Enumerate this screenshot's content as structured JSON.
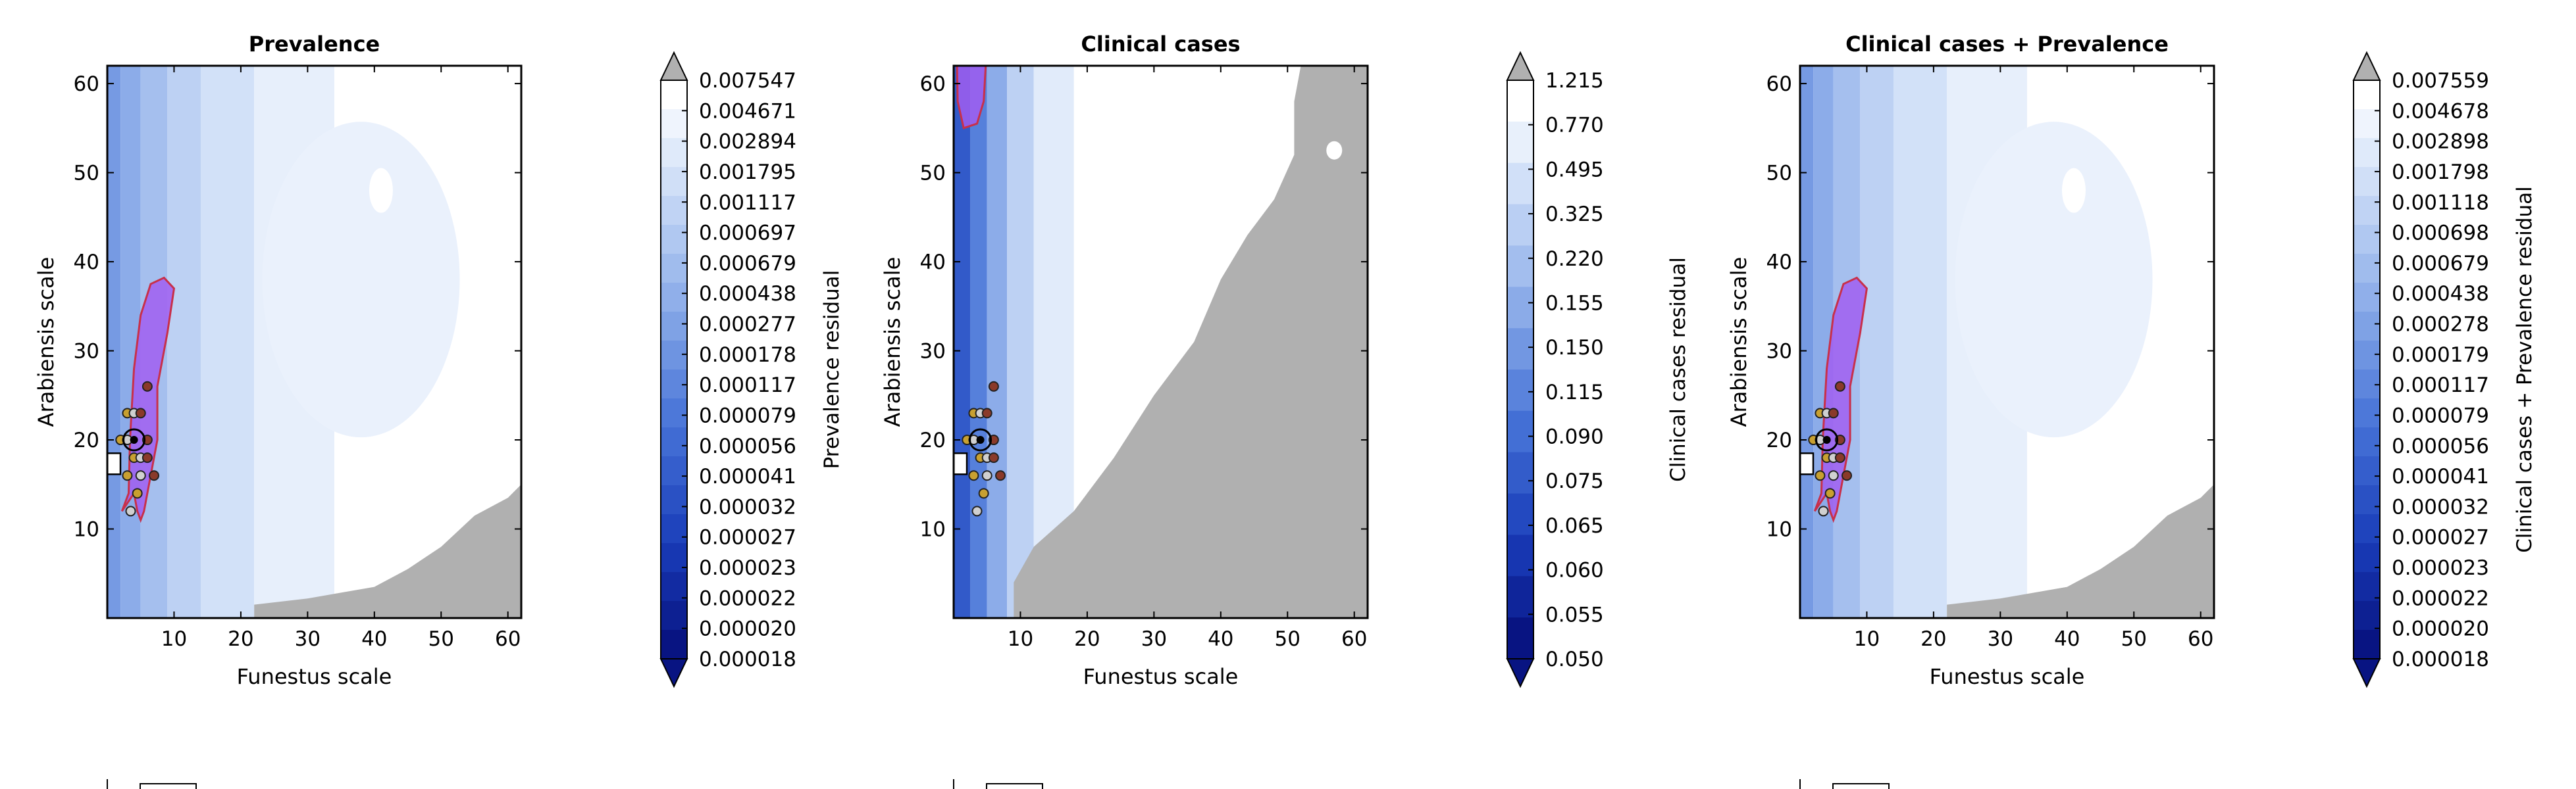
{
  "figure": {
    "background": "#ffffff",
    "nodata_color": "#b0b0b0",
    "region_fill": "#a05ef0",
    "region_stroke": "#c8304a"
  },
  "chart_data": [
    {
      "type": "heatmap",
      "id": "prevalence",
      "title": "Prevalence",
      "xlabel": "Funestus scale",
      "ylabel": "Arabiensis scale",
      "xlim": [
        0,
        62
      ],
      "ylim": [
        0,
        62
      ],
      "xticks": [
        10,
        20,
        30,
        40,
        50,
        60
      ],
      "yticks": [
        10,
        20,
        30,
        40,
        50,
        60
      ],
      "colorbar_label": "Prevalence residual",
      "colorbar_ticks": [
        "0.007547",
        "0.004671",
        "0.002894",
        "0.001795",
        "0.001117",
        "0.000697",
        "0.000679",
        "0.000438",
        "0.000277",
        "0.000178",
        "0.000117",
        "0.000079",
        "0.000056",
        "0.000041",
        "0.000032",
        "0.000027",
        "0.000023",
        "0.000022",
        "0.000020",
        "0.000018"
      ],
      "colorbar_extend": "both",
      "nodata_region": "bottom-right",
      "highlight_region": "left ridge, y 12–38"
    },
    {
      "type": "heatmap",
      "id": "clinical",
      "title": "Clinical cases",
      "xlabel": "Funestus scale",
      "ylabel": "Arabiensis scale",
      "xlim": [
        0,
        62
      ],
      "ylim": [
        0,
        62
      ],
      "xticks": [
        10,
        20,
        30,
        40,
        50,
        60
      ],
      "yticks": [
        10,
        20,
        30,
        40,
        50,
        60
      ],
      "colorbar_label": "Clinical cases residual",
      "colorbar_ticks": [
        "1.215",
        "0.770",
        "0.495",
        "0.325",
        "0.220",
        "0.155",
        "0.150",
        "0.115",
        "0.090",
        "0.075",
        "0.065",
        "0.060",
        "0.055",
        "0.050"
      ],
      "colorbar_extend": "both",
      "nodata_region": "large lower-right triangle",
      "highlight_region": "top-left, y 55–62"
    },
    {
      "type": "heatmap",
      "id": "combined",
      "title": "Clinical cases + Prevalence",
      "xlabel": "Funestus scale",
      "ylabel": "Arabiensis scale",
      "xlim": [
        0,
        62
      ],
      "ylim": [
        0,
        62
      ],
      "xticks": [
        10,
        20,
        30,
        40,
        50,
        60
      ],
      "yticks": [
        10,
        20,
        30,
        40,
        50,
        60
      ],
      "colorbar_label": "Clinical cases + Prevalence residual",
      "colorbar_ticks": [
        "0.007559",
        "0.004678",
        "0.002898",
        "0.001798",
        "0.001118",
        "0.000698",
        "0.000679",
        "0.000438",
        "0.000278",
        "0.000179",
        "0.000117",
        "0.000079",
        "0.000056",
        "0.000041",
        "0.000032",
        "0.000027",
        "0.000023",
        "0.000022",
        "0.000020",
        "0.000018"
      ],
      "colorbar_extend": "both",
      "nodata_region": "bottom-right",
      "highlight_region": "left ridge, y 12–38"
    }
  ]
}
